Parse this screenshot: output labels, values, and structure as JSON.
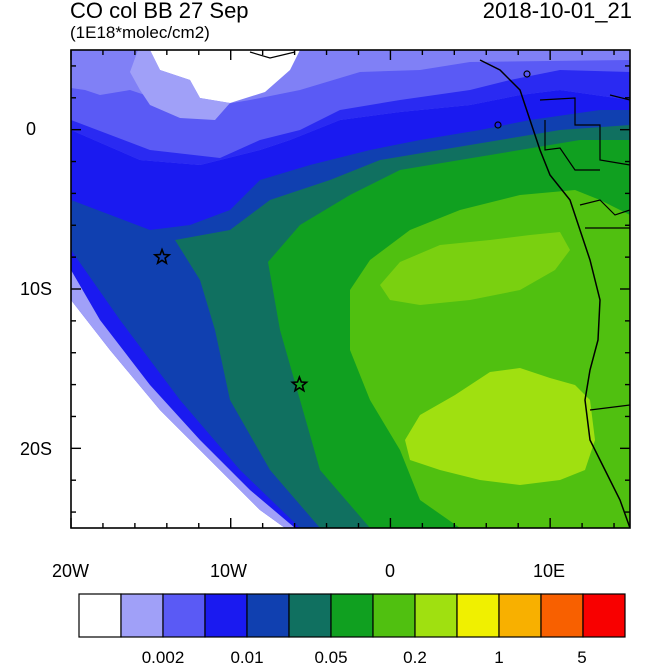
{
  "title_left": "CO col BB 27 Sep",
  "subtitle": "(1E18*molec/cm2)",
  "title_right": "2018-10-01_21",
  "y_axis_labels": [
    "0",
    "10S",
    "20S"
  ],
  "x_axis_labels": [
    "20W",
    "10W",
    "0",
    "10E"
  ],
  "colorbar": {
    "colors": [
      "#ffffff",
      "#a0a0f8",
      "#5a5af5",
      "#1a1af0",
      "#1040b0",
      "#107060",
      "#10a020",
      "#50c010",
      "#a0e010",
      "#f0f000",
      "#f8b000",
      "#f86000",
      "#f80000"
    ],
    "labels": [
      "0.002",
      "0.01",
      "0.05",
      "0.2",
      "1",
      "5"
    ]
  },
  "markers": [
    {
      "name": "star-marker-west",
      "lon": -14.3,
      "lat": -8.0
    },
    {
      "name": "star-marker-south",
      "lon": -5.7,
      "lat": -16.0
    }
  ]
}
